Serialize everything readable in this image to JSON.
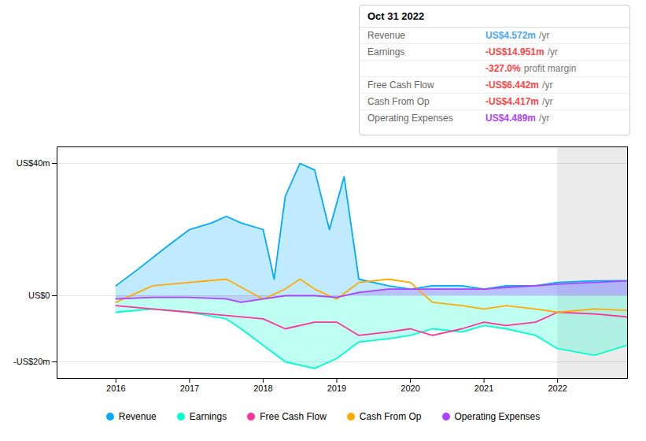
{
  "chart_data": {
    "type": "line",
    "xlim": [
      2015.2,
      2022.95
    ],
    "xticks": [
      2016,
      2017,
      2018,
      2019,
      2020,
      2021,
      2022
    ],
    "ylim": [
      -25,
      45
    ],
    "yticks": [
      {
        "value": -20,
        "label": "-US$20m"
      },
      {
        "value": 0,
        "label": "US$0"
      },
      {
        "value": 40,
        "label": "US$40m"
      }
    ],
    "grid": true,
    "legend": "bottom",
    "highlight_x": [
      2022.0,
      2022.95
    ],
    "series": [
      {
        "name": "Revenue",
        "color": "#00aaff",
        "type": "area",
        "x": [
          2016.0,
          2016.3,
          2016.7,
          2017.0,
          2017.3,
          2017.5,
          2017.7,
          2018.0,
          2018.15,
          2018.3,
          2018.5,
          2018.7,
          2018.9,
          2019.1,
          2019.3,
          2019.7,
          2020.0,
          2020.3,
          2020.7,
          2021.0,
          2021.3,
          2021.7,
          2022.0,
          2022.5,
          2022.95
        ],
        "values": [
          3,
          8,
          15,
          20,
          22,
          24,
          22,
          20,
          5,
          30,
          40,
          38,
          20,
          36,
          5,
          3,
          2,
          3,
          3,
          2,
          3,
          3,
          4,
          4.5,
          4.572
        ]
      },
      {
        "name": "Earnings",
        "color": "#00ffcc",
        "type": "area",
        "x": [
          2016.0,
          2016.5,
          2017.0,
          2017.5,
          2017.7,
          2018.0,
          2018.3,
          2018.7,
          2019.0,
          2019.3,
          2019.7,
          2020.0,
          2020.3,
          2020.7,
          2021.0,
          2021.3,
          2021.7,
          2022.0,
          2022.5,
          2022.95
        ],
        "values": [
          -5,
          -4,
          -5,
          -7,
          -10,
          -15,
          -20,
          -22,
          -19,
          -14,
          -13,
          -12,
          -10,
          -11,
          -9,
          -10,
          -12,
          -16,
          -18,
          -14.951
        ]
      },
      {
        "name": "Free Cash Flow",
        "color": "#ff3399",
        "type": "line",
        "x": [
          2016.0,
          2016.5,
          2017.0,
          2017.5,
          2018.0,
          2018.3,
          2018.7,
          2019.0,
          2019.3,
          2019.7,
          2020.0,
          2020.3,
          2020.7,
          2021.0,
          2021.3,
          2021.7,
          2022.0,
          2022.5,
          2022.95
        ],
        "values": [
          -3,
          -4,
          -5,
          -6,
          -7,
          -10,
          -8,
          -8,
          -12,
          -11,
          -10,
          -12,
          -10,
          -8,
          -9,
          -8,
          -5,
          -5.5,
          -6.442
        ]
      },
      {
        "name": "Cash From Op",
        "color": "#ffaa00",
        "type": "line",
        "x": [
          2016.0,
          2016.5,
          2017.0,
          2017.5,
          2018.0,
          2018.3,
          2018.5,
          2018.7,
          2019.0,
          2019.3,
          2019.7,
          2020.0,
          2020.3,
          2020.7,
          2021.0,
          2021.3,
          2021.7,
          2022.0,
          2022.5,
          2022.95
        ],
        "values": [
          -2,
          3,
          4,
          5,
          -1,
          2,
          5,
          2,
          -1,
          4,
          5,
          4,
          -2,
          -3,
          -4,
          -3,
          -4,
          -5,
          -4,
          -4.417
        ]
      },
      {
        "name": "Operating Expenses",
        "color": "#aa44ff",
        "type": "area",
        "x": [
          2016.0,
          2016.5,
          2017.0,
          2017.5,
          2017.7,
          2018.0,
          2018.3,
          2018.7,
          2019.0,
          2019.3,
          2019.7,
          2020.0,
          2020.3,
          2020.7,
          2021.0,
          2021.3,
          2021.7,
          2022.0,
          2022.5,
          2022.95
        ],
        "values": [
          -1,
          -0.5,
          -0.5,
          -1,
          -2,
          -1,
          0,
          0,
          -0.5,
          1,
          2,
          2,
          2,
          2,
          2,
          2.5,
          3,
          3.5,
          4,
          4.489
        ]
      }
    ],
    "tooltip": {
      "title": "Oct 31 2022",
      "rows": [
        {
          "label": "Revenue",
          "value": 4.572,
          "value_label": "US$4.572m",
          "suffix": "/yr",
          "color": "#4da6ff"
        },
        {
          "label": "Earnings",
          "value": -14.951,
          "value_label": "-US$14.951m",
          "suffix": "/yr",
          "color": "#ff4444"
        },
        {
          "value": -327.0,
          "value_label": "-327.0%",
          "suffix": "profit margin",
          "color": "#ff4444"
        },
        {
          "label": "Free Cash Flow",
          "value": -6.442,
          "value_label": "-US$6.442m",
          "suffix": "/yr",
          "color": "#ff4444"
        },
        {
          "label": "Cash From Op",
          "value": -4.417,
          "value_label": "-US$4.417m",
          "suffix": "/yr",
          "color": "#ff4444"
        },
        {
          "label": "Operating Expenses",
          "value": 4.489,
          "value_label": "US$4.489m",
          "suffix": "/yr",
          "color": "#aa44ff"
        }
      ]
    }
  }
}
